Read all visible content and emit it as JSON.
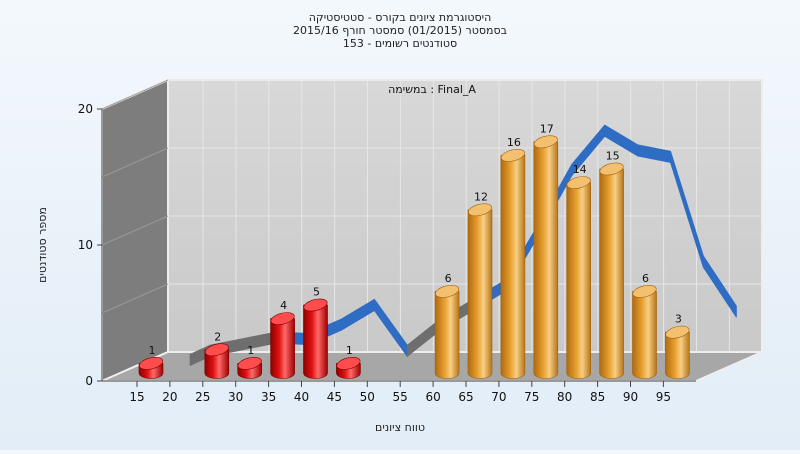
{
  "chart_data": {
    "type": "bar",
    "title_lines": [
      "היסטוגרמת ציונים בקורס - סטטיסטיקה",
      "בסמסטר  (01/2015)  סמסטר חורף 2015/16",
      "סטודנטים רשומים - 153"
    ],
    "annotation": "במשימה : Final_A",
    "xlabel": "טווח ציונים",
    "ylabel": "מספר סטודנטים",
    "ylim": [
      0,
      20
    ],
    "y_ticks": [
      "0",
      "10",
      "20"
    ],
    "x_ticks": [
      "15",
      "20",
      "25",
      "30",
      "35",
      "40",
      "45",
      "50",
      "55",
      "60",
      "65",
      "70",
      "75",
      "80",
      "85",
      "90",
      "95"
    ],
    "bars": [
      {
        "x": 15,
        "value": 1,
        "label": "1"
      },
      {
        "x": 25,
        "value": 2,
        "label": "2"
      },
      {
        "x": 30,
        "value": 1,
        "label": "1"
      },
      {
        "x": 35,
        "value": 4,
        "label": "4"
      },
      {
        "x": 40,
        "value": 5,
        "label": "5"
      },
      {
        "x": 45,
        "value": 1,
        "label": "1"
      },
      {
        "x": 60,
        "value": 6,
        "label": "6"
      },
      {
        "x": 65,
        "value": 12,
        "label": "12"
      },
      {
        "x": 70,
        "value": 16,
        "label": "16"
      },
      {
        "x": 75,
        "value": 17,
        "label": "17"
      },
      {
        "x": 80,
        "value": 14,
        "label": "14"
      },
      {
        "x": 85,
        "value": 15,
        "label": "15"
      },
      {
        "x": 90,
        "value": 6,
        "label": "6"
      },
      {
        "x": 95,
        "value": 3,
        "label": "3"
      }
    ],
    "fail_threshold": 55,
    "colors": {
      "fail": "#e01010",
      "pass": "#e8a030",
      "curve": "#2f6cc4",
      "curve_low": "#6e6e6e",
      "back_wall": "#c9c9c9",
      "side_wall": "#7d7d7d",
      "floor": "#a7a7a7"
    },
    "curve": {
      "x": [
        17,
        20,
        25,
        30,
        35,
        40,
        45,
        50,
        55,
        60,
        65,
        70,
        75,
        80,
        85,
        90,
        95,
        100
      ],
      "y": [
        0.5,
        1.2,
        1.7,
        2.2,
        2.1,
        3.2,
        4.7,
        1.2,
        3.2,
        4.7,
        6.2,
        10.5,
        15,
        18,
        16.5,
        16,
        8,
        4.2
      ]
    },
    "grid": true
  }
}
